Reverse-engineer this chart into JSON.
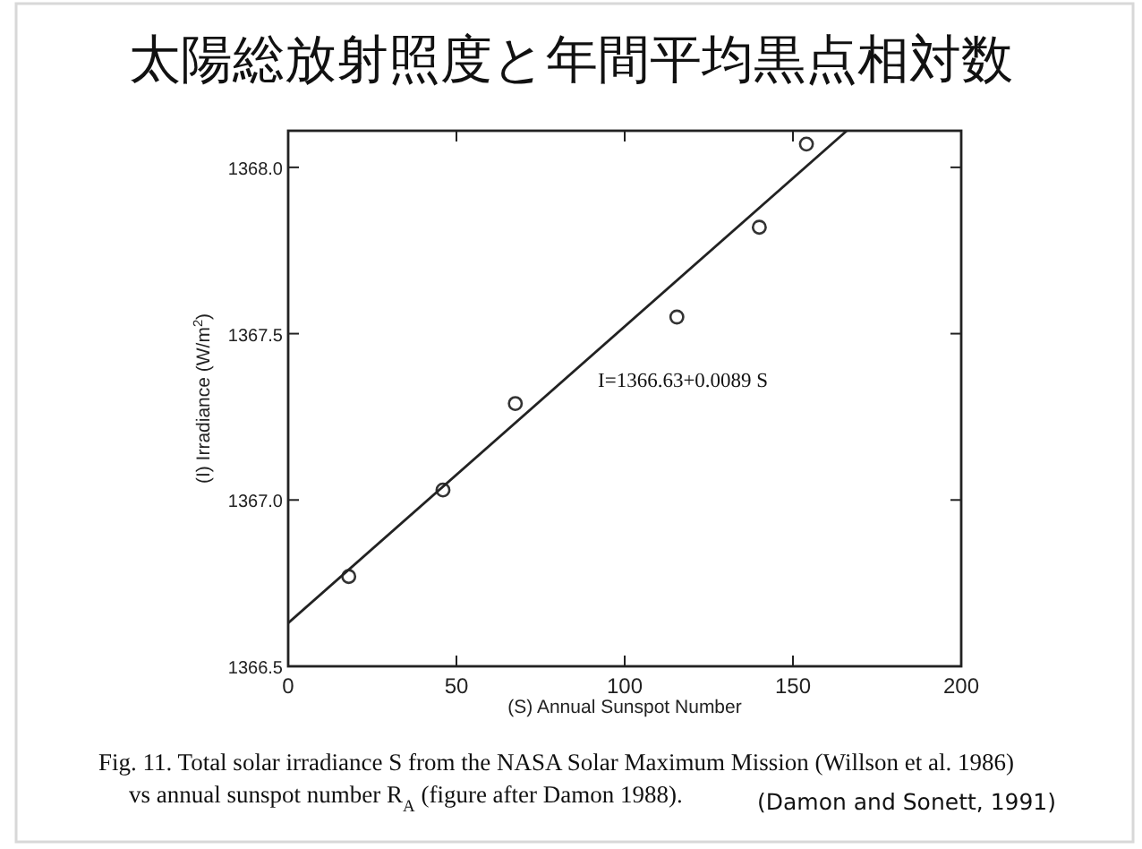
{
  "chart_data": {
    "type": "scatter",
    "title": "太陽総放射照度と年間平均黒点相対数",
    "xlabel": "(S) Annual Sunspot Number",
    "ylabel": "(I) Irradiance (W/m$^{2}$)",
    "x": [
      18,
      46,
      67.5,
      115.5,
      140,
      154
    ],
    "series": [
      {
        "color": "#333333",
        "marker": "circle",
        "values": [
          1366.77,
          1367.03,
          1367.29,
          1367.55,
          1367.82,
          1368.07
        ]
      },
      {
        "type": "line",
        "color": "#222222",
        "marker": "none",
        "x": [
          0,
          166
        ],
        "values": [
          1366.63,
          1368.11
        ]
      }
    ],
    "xlim": [
      0,
      200
    ],
    "ylim": [
      1366.5,
      1368.11
    ],
    "xticks": [
      0,
      50,
      100,
      150,
      200
    ],
    "yticks": [
      {
        "value": 1366.5,
        "label": "1366.5"
      },
      {
        "value": 1367,
        "label": "1367.0"
      },
      {
        "value": 1367.5,
        "label": "1367.5"
      },
      {
        "value": 1368,
        "label": "1368.0"
      }
    ],
    "grid": false,
    "annotations": [
      "I=1366.63+0.0089 S",
      "Fig. 11. Total solar irradiance S from the NASA Solar Maximum Mission (Willson et al. 1986)",
      "vs annual sunspot number R$_{A}$ (figure after Damon 1988).",
      "(Damon and Sonett, 1991)"
    ]
  }
}
